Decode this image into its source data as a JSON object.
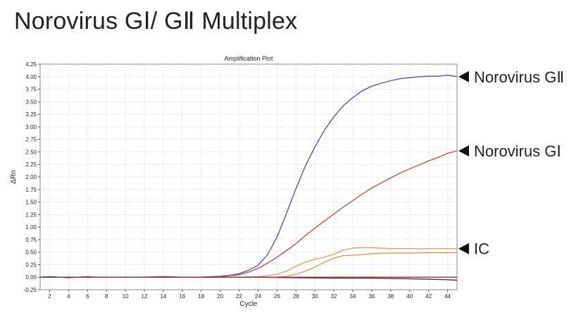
{
  "page": {
    "title": "Norovirus GⅠ/ GⅡ Multiplex"
  },
  "chart_data": {
    "type": "line",
    "title": "Amplification Plot",
    "xlabel": "Cycle",
    "ylabel": "ΔRn",
    "xlim": [
      1,
      45
    ],
    "ylim": [
      -0.25,
      4.25
    ],
    "x_ticks": [
      2,
      4,
      6,
      8,
      10,
      12,
      14,
      16,
      18,
      20,
      22,
      24,
      26,
      28,
      30,
      32,
      34,
      36,
      38,
      40,
      42,
      44
    ],
    "y_ticks": [
      -0.25,
      0.0,
      0.25,
      0.5,
      0.75,
      1.0,
      1.25,
      1.5,
      1.75,
      2.0,
      2.25,
      2.5,
      2.75,
      3.0,
      3.25,
      3.5,
      3.75,
      4.0,
      4.25
    ],
    "y_tick_labels": [
      "-0.25",
      "0.00",
      "0.25",
      "0.50",
      "0.75",
      "1.00",
      "1.25",
      "1.50",
      "1.75",
      "2.00",
      "2.25",
      "2.50",
      "2.75",
      "3.00",
      "3.25",
      "3.50",
      "3.75",
      "4.00",
      "4.25"
    ],
    "grid": true,
    "series": [
      {
        "name": "Norovirus GⅡ",
        "color": "#5b52a6",
        "x": [
          1,
          4,
          8,
          12,
          16,
          18,
          20,
          21,
          22,
          23,
          24,
          25,
          26,
          27,
          28,
          29,
          30,
          31,
          32,
          33,
          34,
          35,
          36,
          37,
          38,
          39,
          40,
          41,
          42,
          43,
          44,
          45
        ],
        "y": [
          0.0,
          0.0,
          0.0,
          0.0,
          0.0,
          0.0,
          0.02,
          0.04,
          0.07,
          0.14,
          0.24,
          0.45,
          0.8,
          1.27,
          1.77,
          2.22,
          2.6,
          2.93,
          3.2,
          3.42,
          3.58,
          3.72,
          3.81,
          3.87,
          3.92,
          3.96,
          3.98,
          4.0,
          4.01,
          4.01,
          4.03,
          4.0
        ]
      },
      {
        "name": "Norovirus GⅠ",
        "color": "#c0504d",
        "x": [
          1,
          4,
          8,
          12,
          16,
          18,
          20,
          21,
          22,
          23,
          24,
          25,
          26,
          27,
          28,
          29,
          30,
          31,
          32,
          33,
          34,
          35,
          36,
          37,
          38,
          39,
          40,
          41,
          42,
          43,
          44,
          45
        ],
        "y": [
          0.0,
          0.0,
          0.0,
          0.0,
          0.0,
          0.0,
          0.01,
          0.03,
          0.05,
          0.1,
          0.18,
          0.28,
          0.4,
          0.53,
          0.67,
          0.83,
          0.98,
          1.12,
          1.26,
          1.4,
          1.53,
          1.66,
          1.78,
          1.88,
          1.98,
          2.08,
          2.16,
          2.24,
          2.32,
          2.39,
          2.47,
          2.52
        ]
      },
      {
        "name": "IC",
        "color": "#e0a060",
        "x": [
          1,
          4,
          8,
          12,
          16,
          20,
          22,
          24,
          25,
          26,
          27,
          28,
          29,
          30,
          31,
          32,
          33,
          34,
          35,
          36,
          37,
          38,
          40,
          42,
          44,
          45
        ],
        "y": [
          0.0,
          0.0,
          0.0,
          0.0,
          0.0,
          0.0,
          0.0,
          0.01,
          0.03,
          0.06,
          0.12,
          0.22,
          0.3,
          0.36,
          0.4,
          0.46,
          0.54,
          0.58,
          0.59,
          0.59,
          0.58,
          0.57,
          0.57,
          0.57,
          0.57,
          0.57
        ]
      },
      {
        "name": "",
        "color": "#e09a50",
        "x": [
          1,
          4,
          8,
          12,
          16,
          20,
          24,
          26,
          27,
          28,
          29,
          30,
          31,
          32,
          33,
          34,
          35,
          36,
          38,
          40,
          42,
          44,
          45
        ],
        "y": [
          0.0,
          0.0,
          0.0,
          0.0,
          0.0,
          0.0,
          0.0,
          0.0,
          0.02,
          0.06,
          0.12,
          0.2,
          0.3,
          0.38,
          0.43,
          0.44,
          0.45,
          0.47,
          0.48,
          0.48,
          0.49,
          0.49,
          0.49
        ]
      },
      {
        "name": "",
        "color": "#4a2a5e",
        "x": [
          1,
          4,
          8,
          12,
          14,
          16,
          20,
          24,
          28,
          32,
          36,
          40,
          42,
          44,
          45
        ],
        "y": [
          0.0,
          0.0,
          0.0,
          0.0,
          0.01,
          0.0,
          0.0,
          0.0,
          -0.01,
          -0.02,
          -0.02,
          -0.03,
          -0.04,
          -0.05,
          -0.06
        ]
      },
      {
        "name": "",
        "color": "#9b3030",
        "x": [
          1,
          2,
          3,
          4,
          5,
          6,
          7,
          8,
          12,
          16,
          20,
          24,
          28,
          32,
          36,
          40,
          44,
          45
        ],
        "y": [
          0.0,
          0.01,
          0.0,
          -0.01,
          0.0,
          0.01,
          0.0,
          0.0,
          0.0,
          0.0,
          0.0,
          0.0,
          0.0,
          0.0,
          0.0,
          0.0,
          0.0,
          0.0
        ]
      }
    ],
    "callouts": [
      {
        "label": "Norovirus GⅡ",
        "series": 0
      },
      {
        "label": "Norovirus GⅠ",
        "series": 1
      },
      {
        "label": "IC",
        "series": 2
      }
    ]
  }
}
